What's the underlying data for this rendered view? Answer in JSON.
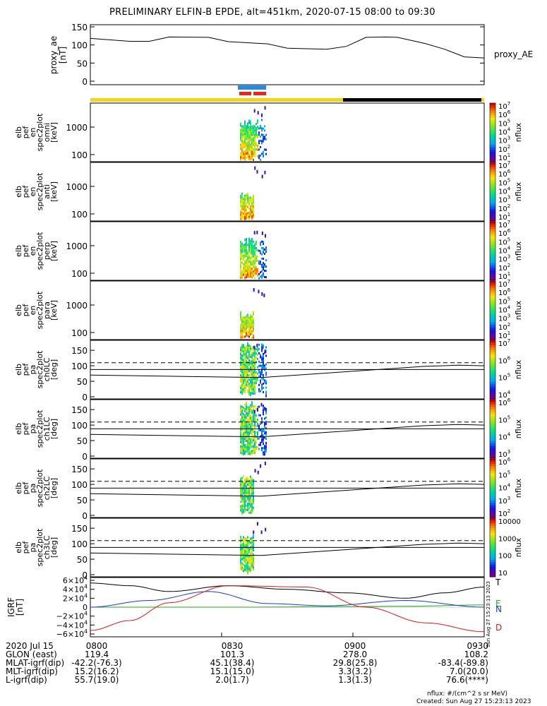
{
  "title": "PRELIMINARY ELFIN-B EPDE, alt=451km, 2020-07-15 08:00 to 09:30",
  "chart_data": [
    {
      "type": "line",
      "panel": "proxy_ae",
      "ylabel": "proxy_ae",
      "yunit": "[nT]",
      "legend": "proxy_AE",
      "ylim": [
        0,
        150
      ],
      "yticks": [
        "150",
        "100",
        "50",
        "0"
      ],
      "x": [
        0,
        0.1,
        0.15,
        0.2,
        0.3,
        0.35,
        0.45,
        0.5,
        0.6,
        0.65,
        0.7,
        0.75,
        0.78,
        0.85,
        0.9,
        0.95,
        1.0
      ],
      "values": [
        118,
        110,
        110,
        122,
        121,
        109,
        103,
        91,
        88,
        96,
        121,
        122,
        121,
        104,
        88,
        67,
        64
      ]
    },
    {
      "type": "heatmap",
      "panel": "elb_pef_en_spec2plot_omni",
      "ylabel": [
        "elb",
        "pef",
        "en",
        "spec2plot",
        "omni",
        "[keV]"
      ],
      "yticks": [
        "1000",
        "100"
      ],
      "colorbar_label": "nflux",
      "colorbar_ticks": [
        "10^7",
        "10^6",
        "10^5",
        "10^4",
        "10^3",
        "10^2",
        "10^1"
      ]
    },
    {
      "type": "heatmap",
      "panel": "elb_pef_en_spec2plot_anti",
      "ylabel": [
        "elb",
        "pef",
        "en",
        "spec2plot",
        "anti",
        "[keV]"
      ],
      "yticks": [
        "1000",
        "100"
      ],
      "colorbar_label": "nflux",
      "colorbar_ticks": [
        "10^7",
        "10^6",
        "10^5",
        "10^4",
        "10^3",
        "10^2",
        "10^1"
      ]
    },
    {
      "type": "heatmap",
      "panel": "elb_pef_en_spec2plot_perp",
      "ylabel": [
        "elb",
        "pef",
        "en",
        "spec2plot",
        "perp",
        "[keV]"
      ],
      "yticks": [
        "1000",
        "100"
      ],
      "colorbar_label": "nflux",
      "colorbar_ticks": [
        "10^7",
        "10^6",
        "10^5",
        "10^4",
        "10^3",
        "10^2",
        "10^1"
      ]
    },
    {
      "type": "heatmap",
      "panel": "elb_pef_en_spec2plot_para",
      "ylabel": [
        "elb",
        "pef",
        "en",
        "spec2plot",
        "para",
        "[keV]"
      ],
      "yticks": [
        "1000",
        "100"
      ],
      "colorbar_label": "nflux",
      "colorbar_ticks": [
        "10^7",
        "10^6",
        "10^5",
        "10^4",
        "10^3",
        "10^2",
        "10^1"
      ]
    },
    {
      "type": "heatmap",
      "panel": "elb_pef_pa_spec2plot_ch0LC",
      "ylabel": [
        "elb",
        "pef",
        "pa",
        "spec2plot",
        "ch0LC",
        "[deg]"
      ],
      "yticks": [
        "150",
        "100",
        "50",
        "0"
      ],
      "ylim": [
        0,
        180
      ],
      "colorbar_label": "nflux",
      "colorbar_ticks": [
        "10^7",
        "10^6",
        "10^5",
        "10^4"
      ]
    },
    {
      "type": "heatmap",
      "panel": "elb_pef_pa_spec2plot_ch1LC",
      "ylabel": [
        "elb",
        "pef",
        "pa",
        "spec2plot",
        "ch1LC",
        "[deg]"
      ],
      "yticks": [
        "150",
        "100",
        "50",
        "0"
      ],
      "ylim": [
        0,
        180
      ],
      "colorbar_label": "nflux",
      "colorbar_ticks": [
        "10^6",
        "10^5",
        "10^4",
        "10^3"
      ]
    },
    {
      "type": "heatmap",
      "panel": "elb_pef_pa_spec2plot_ch2LC",
      "ylabel": [
        "elb",
        "pef",
        "pa",
        "spec2plot",
        "ch2LC",
        "[deg]"
      ],
      "yticks": [
        "150",
        "100",
        "50",
        "0"
      ],
      "ylim": [
        0,
        180
      ],
      "colorbar_label": "nflux",
      "colorbar_ticks": [
        "10^6",
        "10^5",
        "10^4",
        "10^3",
        "10^2"
      ]
    },
    {
      "type": "heatmap",
      "panel": "elb_pef_pa_spec2plot_ch3LC",
      "ylabel": [
        "elb",
        "pef",
        "pa",
        "spec2plot",
        "ch3LC",
        "[deg]"
      ],
      "yticks": [
        "150",
        "100",
        "50",
        "0"
      ],
      "ylim": [
        0,
        180
      ],
      "colorbar_label": "nflux",
      "colorbar_ticks": [
        "10000",
        "1000",
        "100",
        "10"
      ]
    },
    {
      "type": "line",
      "panel": "IGRF",
      "ylabel": "IGRF",
      "yunit": "[nT]",
      "yticks": [
        "6×10^4",
        "4×10^4",
        "2×10^4",
        "0",
        "−2×10^4",
        "−4×10^4",
        "−6×10^4"
      ],
      "ylim": [
        -60000,
        60000
      ],
      "legend": [
        "T",
        "E",
        "N",
        "D"
      ],
      "series": [
        {
          "name": "T",
          "x": [
            0,
            0.1,
            0.2,
            0.35,
            0.5,
            0.65,
            0.8,
            0.9,
            1.0
          ],
          "values": [
            54000,
            48000,
            35000,
            48000,
            40000,
            32000,
            20000,
            32000,
            45000
          ]
        },
        {
          "name": "E",
          "x": [
            0,
            0.2,
            0.4,
            0.6,
            0.8,
            1.0
          ],
          "values": [
            0,
            0,
            0,
            1000,
            2000,
            5000
          ]
        },
        {
          "name": "N",
          "x": [
            0,
            0.15,
            0.3,
            0.45,
            0.6,
            0.8,
            1.0
          ],
          "values": [
            0,
            15000,
            35000,
            8000,
            3000,
            15000,
            0
          ]
        },
        {
          "name": "D",
          "x": [
            0,
            0.1,
            0.2,
            0.35,
            0.55,
            0.7,
            0.85,
            1.0
          ],
          "values": [
            -52000,
            -30000,
            10000,
            48000,
            45000,
            0,
            -35000,
            -55000
          ]
        }
      ]
    }
  ],
  "stamp": "Sun Aug 27 15:23:13 2023",
  "footer": {
    "row_labels": [
      "2020 Jul 15",
      "GLON (east)",
      "MLAT-igrf(dip)",
      "MLT-igrf(dip)",
      "L-igrf(dip)"
    ],
    "columns": [
      [
        "0800",
        "119.4",
        "-42.2(-76.3)",
        "15.2(16.2)",
        "55.7(19.0)"
      ],
      [
        "0830",
        "101.3",
        "45.1(38.4)",
        "15.1(15.0)",
        "2.0(1.7)"
      ],
      [
        "0900",
        "278.0",
        "29.8(25.8)",
        "3.3(3.2)",
        "1.3(1.3)"
      ],
      [
        "0930",
        "108.2",
        "-83.4(-89.8)",
        "7.0(20.0)",
        "76.6(****)"
      ]
    ],
    "units_note": "nflux: #/(cm^2 s sr MeV)",
    "created": "Created: Sun Aug 27 15:23:13 2023"
  },
  "colors": {
    "sunlit_bar": "#f5d31a",
    "eclipse_bar": "#000000",
    "science_zone_blue": "#1f8fe6",
    "science_zone_red": "#e8261c",
    "igrf_T": "#000000",
    "igrf_E": "#22aa22",
    "igrf_N": "#1a3ad6",
    "igrf_D": "#dd1a1a"
  }
}
